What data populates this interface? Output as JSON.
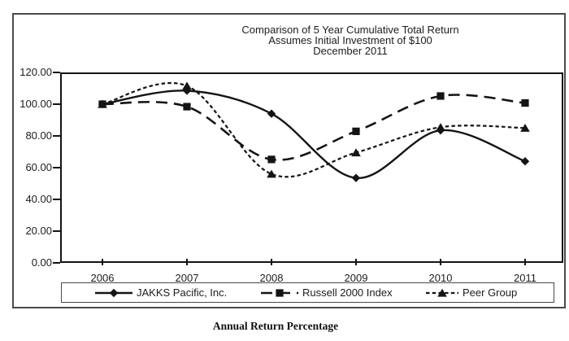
{
  "chart_data": {
    "type": "line",
    "title_lines": [
      "Comparison of 5 Year Cumulative Total Return",
      "Assumes Initial Investment of $100",
      "December 2011"
    ],
    "categories": [
      "2006",
      "2007",
      "2008",
      "2009",
      "2010",
      "2011"
    ],
    "series": [
      {
        "name": "JAKKS Pacific, Inc.",
        "line_style": "solid",
        "marker": "diamond",
        "values": [
          100.0,
          108.5,
          94.0,
          53.5,
          83.5,
          64.0
        ]
      },
      {
        "name": "Russell 2000 Index",
        "line_style": "long-dash",
        "marker": "square",
        "values": [
          100.0,
          98.43,
          65.18,
          82.89,
          105.14,
          100.75
        ]
      },
      {
        "name": "Peer Group",
        "line_style": "short-dash",
        "marker": "triangle",
        "values": [
          100.0,
          111.5,
          56.0,
          69.5,
          85.5,
          85.0
        ]
      }
    ],
    "y_tick_labels": [
      "120.00",
      "100.00",
      "80.00",
      "60.00",
      "40.00",
      "20.00",
      "0.00"
    ],
    "ylim": [
      0,
      120
    ],
    "grid": false,
    "smooth": true,
    "legend_position": "bottom",
    "line_color": "#141414",
    "caption": "Annual Return Percentage"
  }
}
